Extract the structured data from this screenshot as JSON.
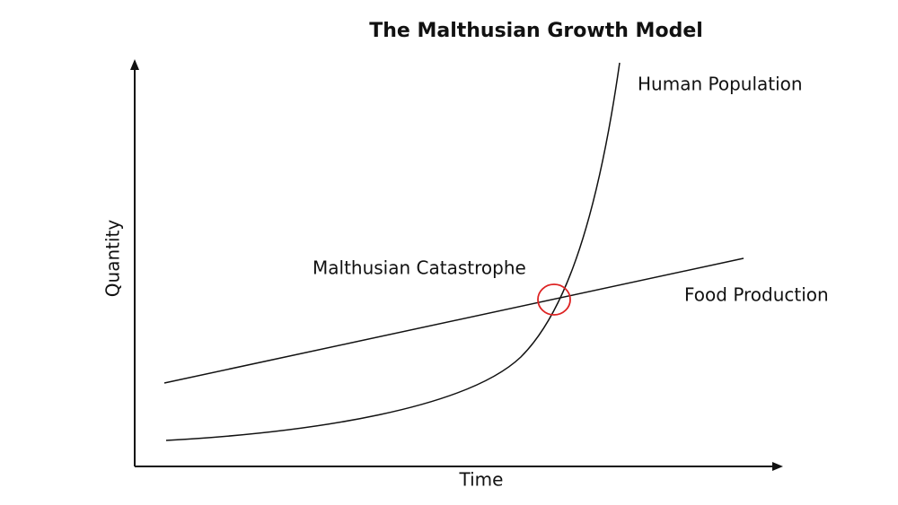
{
  "title": "The Malthusian Growth Model",
  "x_axis": {
    "label": "Time"
  },
  "y_axis": {
    "label": "Quantity"
  },
  "curves": [
    {
      "label": "Human Population"
    },
    {
      "label": "Food Production"
    }
  ],
  "annotation": {
    "label": "Malthusian Catastrophe"
  }
}
